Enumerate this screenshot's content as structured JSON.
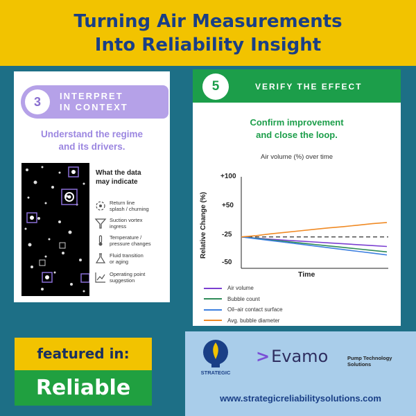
{
  "header": {
    "line1": "Turning Air Measurements",
    "line2": "Into Reliability Insight"
  },
  "step3": {
    "number": "3",
    "title_line1": "INTERPRET",
    "title_line2": "IN CONTEXT",
    "subtitle_line1": "Understand the regime",
    "subtitle_line2": "and its drivers.",
    "indicate_title_line1": "What the data",
    "indicate_title_line2": "may indicate",
    "indicators": [
      {
        "icon": "splash-icon",
        "text": "Return line\nsplash / churning"
      },
      {
        "icon": "vortex-funnel-icon",
        "text": "Suction vortex\ningress"
      },
      {
        "icon": "thermometer-icon",
        "text": "Temperature /\npressure changes"
      },
      {
        "icon": "flask-icon",
        "text": "Fluid transition\nor aging"
      },
      {
        "icon": "trend-chart-icon",
        "text": "Operating point\nsuggestion"
      }
    ]
  },
  "step5": {
    "number": "5",
    "title": "VERIFY THE EFFECT",
    "subtitle_line1": "Confirm improvement",
    "subtitle_line2": "and close the loop."
  },
  "chart_data": {
    "type": "line",
    "title": "Air volume (%) over time",
    "xlabel": "Time",
    "ylabel": "Relative Change (%)",
    "y_tick_labels": [
      "+100",
      "+50",
      "-25",
      "-50"
    ],
    "x": [
      0,
      1,
      2,
      3,
      4,
      5,
      6,
      7,
      8,
      9,
      10
    ],
    "ylim": [
      -50,
      100
    ],
    "grid": false,
    "legend_position": "bottom",
    "series": [
      {
        "name": "Air volume",
        "color": "#7b3fd1",
        "values": [
          0,
          -2,
          -4,
          -5.5,
          -7,
          -8.5,
          -10,
          -11.5,
          -13,
          -14.5,
          -16
        ]
      },
      {
        "name": "Bubble count",
        "color": "#2e8b57",
        "values": [
          0,
          -2.4,
          -5,
          -7.5,
          -10,
          -12.5,
          -15,
          -17.5,
          -20,
          -22.5,
          -25
        ]
      },
      {
        "name": "Oil–air contact surface",
        "color": "#3d7fe0",
        "values": [
          0,
          -3,
          -6,
          -9,
          -12,
          -15,
          -18,
          -21,
          -24,
          -27,
          -30
        ]
      },
      {
        "name": "Avg. bubble diameter",
        "color": "#f08a24",
        "values": [
          0,
          2,
          5,
          7.5,
          10,
          12.5,
          15,
          17,
          19.5,
          22,
          24
        ]
      }
    ],
    "reference_line_value": 0
  },
  "featured": {
    "label": "featured in:",
    "brand": "Reliable"
  },
  "sponsors": {
    "strategic": "STRATEGIC",
    "evamo": "Evamo",
    "evamo_mark": ">",
    "pump_line1": "Pump Technology",
    "pump_line2": "Solutions",
    "url": "www.strategicreliabilitysolutions.com"
  },
  "colors": {
    "header_bg": "#f2c300",
    "header_text": "#1a3f86",
    "purple": "#b5a1e8",
    "green": "#1c9e4a",
    "background": "#1d6f86"
  }
}
